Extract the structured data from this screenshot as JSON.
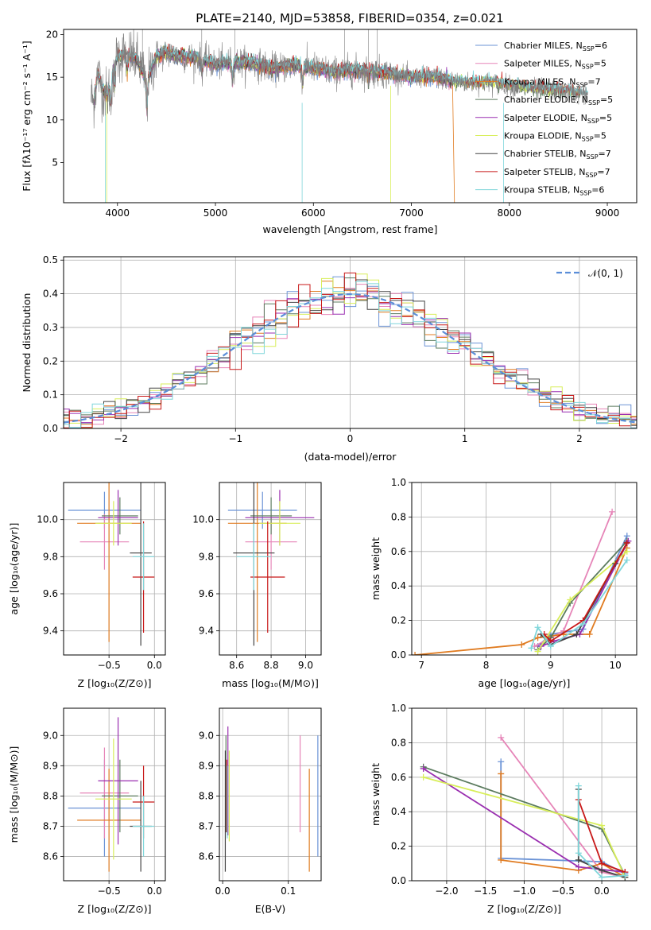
{
  "figure_title": "PLATE=2140, MJD=53858, FIBERID=0354, z=0.021",
  "colors": {
    "Chabrier MILES": "#6b93d6",
    "Salpeter MILES": "#e685b8",
    "Kroupa MILES": "#e07b20",
    "Chabrier ELODIE": "#5b7b5e",
    "Salpeter ELODIE": "#9a2fb0",
    "Kroupa ELODIE": "#d8ee5a",
    "Chabrier STELIB": "#444444",
    "Salpeter STELIB": "#c81818",
    "Kroupa STELIB": "#7fd6da",
    "gaussian": "#5b8ed8"
  },
  "chart_data": [
    {
      "id": "spectrum",
      "type": "line",
      "title": "PLATE=2140, MJD=53858, FIBERID=0354, z=0.021",
      "xlabel": "wavelength [Angstrom, rest frame]",
      "ylabel": "Flux [fλ10⁻¹⁷ erg cm⁻² s⁻¹ A⁻¹]",
      "xlim": [
        3450,
        9300
      ],
      "ylim": [
        0.3,
        20.6
      ],
      "xticks": [
        4000,
        5000,
        6000,
        7000,
        8000,
        9000
      ],
      "yticks": [
        5,
        10,
        15,
        20
      ],
      "legend_position": "upper-right",
      "data_series": {
        "name": "data",
        "color": "#808080"
      },
      "series": [
        {
          "name": "Chabrier MILES",
          "nssp": "6"
        },
        {
          "name": "Salpeter MILES",
          "nssp": "5"
        },
        {
          "name": "Kroupa MILES",
          "nssp": "7"
        },
        {
          "name": "Chabrier ELODIE",
          "nssp": "5"
        },
        {
          "name": "Salpeter ELODIE",
          "nssp": "5"
        },
        {
          "name": "Kroupa ELODIE",
          "nssp": "5"
        },
        {
          "name": "Chabrier STELIB",
          "nssp": "7"
        },
        {
          "name": "Salpeter STELIB",
          "nssp": "7"
        },
        {
          "name": "Kroupa STELIB",
          "nssp": "6"
        }
      ],
      "anchors": {
        "wave": [
          3750,
          3800,
          3850,
          3900,
          3950,
          4000,
          4100,
          4200,
          4300,
          4400,
          4500,
          4600,
          4800,
          5000,
          5200,
          5400,
          5600,
          5800,
          6000,
          6200,
          6400,
          6600,
          6800,
          7000,
          7200,
          7400,
          7600,
          7800,
          8000,
          8200,
          8400,
          8600,
          8800,
          9000,
          9200
        ],
        "flux": [
          11.5,
          15.5,
          13.5,
          12.8,
          15.8,
          17.5,
          17.8,
          17.0,
          14.5,
          17.5,
          17.8,
          17.5,
          17.3,
          16.5,
          16.8,
          16.6,
          16.0,
          16.4,
          16.1,
          15.6,
          15.8,
          15.7,
          15.4,
          15.0,
          15.1,
          14.6,
          14.3,
          14.4,
          14.0,
          13.7,
          13.5,
          13.3,
          13.0,
          12.8,
          12.6
        ]
      }
    },
    {
      "id": "residuals",
      "type": "histogram",
      "xlabel": "(data-model)/error",
      "ylabel": "Normed distribution",
      "xlim": [
        -2.5,
        2.5
      ],
      "ylim": [
        0,
        0.51
      ],
      "xticks": [
        -2,
        -1,
        0,
        1,
        2
      ],
      "yticks": [
        0.0,
        0.1,
        0.2,
        0.3,
        0.4,
        0.5
      ],
      "bin_width": 0.1,
      "gaussian_label": "𝒩(0, 1)",
      "legend_position": "upper-right"
    },
    {
      "id": "age_vs_Z",
      "type": "errorbar",
      "xlabel": "Z [log₁₀(Z/Z⊙)]",
      "ylabel": "age  [log₁₀(age/yr)]",
      "xlim": [
        -1.0,
        0.12
      ],
      "ylim": [
        9.27,
        10.2
      ],
      "xticks": [
        -0.5,
        0.0
      ],
      "yticks": [
        9.4,
        9.6,
        9.8,
        10.0
      ],
      "points": [
        {
          "x": -0.55,
          "xerr": 0.4,
          "y": 10.05,
          "yerr": 0.1
        },
        {
          "x": -0.55,
          "xerr": 0.27,
          "y": 9.88,
          "yerr": 0.15
        },
        {
          "x": -0.5,
          "xerr": 0.35,
          "y": 9.98,
          "yerr": 0.64
        },
        {
          "x": -0.38,
          "xerr": 0.2,
          "y": 10.02,
          "yerr": 0.1
        },
        {
          "x": -0.4,
          "xerr": 0.22,
          "y": 10.01,
          "yerr": 0.15
        },
        {
          "x": -0.45,
          "xerr": 0.2,
          "y": 9.98,
          "yerr": 0.12
        },
        {
          "x": -0.15,
          "xerr": 0.12,
          "y": 9.82,
          "yerr": 0.5
        },
        {
          "x": -0.12,
          "xerr": 0.12,
          "y": 9.69,
          "yerr": 0.3
        },
        {
          "x": -0.12,
          "xerr": 0.12,
          "y": 9.8,
          "yerr": 0.18
        }
      ]
    },
    {
      "id": "age_vs_mass",
      "type": "errorbar",
      "xlabel": "mass [log₁₀(M/M⊙)]",
      "ylabel": "",
      "xlim": [
        8.5,
        9.09
      ],
      "ylim": [
        9.27,
        10.2
      ],
      "xticks": [
        8.6,
        8.8,
        9.0
      ],
      "yticks": [
        9.4,
        9.6,
        9.8,
        10.0
      ],
      "points": [
        {
          "x": 8.75,
          "xerr": 0.2,
          "y": 10.05,
          "yerr": 0.1
        },
        {
          "x": 8.8,
          "xerr": 0.15,
          "y": 9.88,
          "yerr": 0.15
        },
        {
          "x": 8.72,
          "xerr": 0.17,
          "y": 9.98,
          "yerr": 0.64
        },
        {
          "x": 8.8,
          "xerr": 0.12,
          "y": 10.02,
          "yerr": 0.1
        },
        {
          "x": 8.85,
          "xerr": 0.2,
          "y": 10.01,
          "yerr": 0.15
        },
        {
          "x": 8.85,
          "xerr": 0.12,
          "y": 9.98,
          "yerr": 0.12
        },
        {
          "x": 8.7,
          "xerr": 0.12,
          "y": 9.82,
          "yerr": 0.5
        },
        {
          "x": 8.78,
          "xerr": 0.1,
          "y": 9.69,
          "yerr": 0.3
        },
        {
          "x": 8.7,
          "xerr": 0.1,
          "y": 9.8,
          "yerr": 0.18
        }
      ]
    },
    {
      "id": "mass_weight_vs_age",
      "type": "line",
      "xlabel": "age  [log₁₀(age/yr)]",
      "ylabel": "mass weight",
      "xlim": [
        6.85,
        10.33
      ],
      "ylim": [
        0,
        1.0
      ],
      "xticks": [
        7,
        8,
        9,
        10
      ],
      "yticks": [
        0.0,
        0.2,
        0.4,
        0.6,
        0.8,
        1.0
      ],
      "series": [
        {
          "name": "Chabrier MILES",
          "x": [
            8.8,
            9.0,
            9.5,
            10.18
          ],
          "y": [
            0.05,
            0.12,
            0.15,
            0.69
          ]
        },
        {
          "name": "Salpeter MILES",
          "x": [
            8.75,
            9.2,
            9.95
          ],
          "y": [
            0.05,
            0.14,
            0.83
          ]
        },
        {
          "name": "Kroupa MILES",
          "x": [
            6.9,
            8.55,
            8.8,
            9.2,
            9.6,
            10.18
          ],
          "y": [
            0.0,
            0.06,
            0.1,
            0.12,
            0.12,
            0.62
          ]
        },
        {
          "name": "Chabrier ELODIE",
          "x": [
            8.8,
            9.0,
            9.3,
            10.18
          ],
          "y": [
            0.03,
            0.1,
            0.3,
            0.66
          ]
        },
        {
          "name": "Salpeter ELODIE",
          "x": [
            8.85,
            9.05,
            9.45,
            10.2
          ],
          "y": [
            0.05,
            0.08,
            0.12,
            0.66
          ]
        },
        {
          "name": "Kroupa ELODIE",
          "x": [
            8.8,
            9.3,
            10.18
          ],
          "y": [
            0.02,
            0.32,
            0.6
          ]
        },
        {
          "name": "Chabrier STELIB",
          "x": [
            8.85,
            9.0,
            9.4,
            10.0,
            10.18
          ],
          "y": [
            0.12,
            0.06,
            0.12,
            0.53,
            0.65
          ]
        },
        {
          "name": "Salpeter STELIB",
          "x": [
            8.9,
            9.0,
            9.5,
            10.18
          ],
          "y": [
            0.12,
            0.08,
            0.2,
            0.65
          ]
        },
        {
          "name": "Kroupa STELIB",
          "x": [
            8.7,
            8.8,
            9.0,
            9.5,
            10.18
          ],
          "y": [
            0.04,
            0.16,
            0.05,
            0.18,
            0.55
          ]
        }
      ]
    },
    {
      "id": "mass_vs_Z",
      "type": "errorbar",
      "xlabel": "Z [log₁₀(Z/Z⊙)]",
      "ylabel": "mass [log₁₀(M/M⊙)]",
      "xlim": [
        -1.0,
        0.12
      ],
      "ylim": [
        8.52,
        9.09
      ],
      "xticks": [
        -0.5,
        0.0
      ],
      "yticks": [
        8.6,
        8.7,
        8.8,
        8.9,
        9.0
      ],
      "points": [
        {
          "x": -0.55,
          "xerr": 0.4,
          "y": 8.76,
          "yerr": 0.16
        },
        {
          "x": -0.55,
          "xerr": 0.27,
          "y": 8.81,
          "yerr": 0.15
        },
        {
          "x": -0.5,
          "xerr": 0.35,
          "y": 8.72,
          "yerr": 0.17
        },
        {
          "x": -0.38,
          "xerr": 0.2,
          "y": 8.8,
          "yerr": 0.12
        },
        {
          "x": -0.4,
          "xerr": 0.22,
          "y": 8.85,
          "yerr": 0.21
        },
        {
          "x": -0.45,
          "xerr": 0.2,
          "y": 8.79,
          "yerr": 0.2
        },
        {
          "x": -0.15,
          "xerr": 0.12,
          "y": 8.7,
          "yerr": 0.15
        },
        {
          "x": -0.12,
          "xerr": 0.12,
          "y": 8.78,
          "yerr": 0.12
        },
        {
          "x": -0.12,
          "xerr": 0.12,
          "y": 8.7,
          "yerr": 0.1
        }
      ]
    },
    {
      "id": "mass_vs_ebv",
      "type": "errorbar",
      "xlabel": "E(B-V)",
      "ylabel": "",
      "xlim": [
        -0.005,
        0.15
      ],
      "ylim": [
        8.52,
        9.09
      ],
      "xticks": [
        0.0,
        0.1
      ],
      "yticks": [
        8.6,
        8.7,
        8.8,
        8.9,
        9.0
      ],
      "points": [
        {
          "x": 0.145,
          "xerr": 0,
          "y": 8.8,
          "yerr": 0.2
        },
        {
          "x": 0.118,
          "xerr": 0,
          "y": 8.84,
          "yerr": 0.16
        },
        {
          "x": 0.132,
          "xerr": 0,
          "y": 8.72,
          "yerr": 0.17
        },
        {
          "x": 0.005,
          "xerr": 0,
          "y": 8.84,
          "yerr": 0.16
        },
        {
          "x": 0.008,
          "xerr": 0,
          "y": 8.85,
          "yerr": 0.18
        },
        {
          "x": 0.01,
          "xerr": 0,
          "y": 8.8,
          "yerr": 0.15
        },
        {
          "x": 0.004,
          "xerr": 0,
          "y": 8.75,
          "yerr": 0.2
        },
        {
          "x": 0.006,
          "xerr": 0,
          "y": 8.8,
          "yerr": 0.12
        },
        {
          "x": 0.007,
          "xerr": 0,
          "y": 8.78,
          "yerr": 0.12
        }
      ]
    },
    {
      "id": "mass_weight_vs_Z",
      "type": "line",
      "xlabel": "Z [log₁₀(Z/Z⊙)]",
      "ylabel": "mass weight",
      "xlim": [
        -2.45,
        0.45
      ],
      "ylim": [
        0,
        1.0
      ],
      "xticks": [
        -2.0,
        -1.5,
        -1.0,
        -0.5,
        0.0
      ],
      "yticks": [
        0.0,
        0.2,
        0.4,
        0.6,
        0.8,
        1.0
      ],
      "series": [
        {
          "name": "Chabrier MILES",
          "x": [
            -1.3,
            -1.3,
            0.0,
            0.3
          ],
          "y": [
            0.69,
            0.13,
            0.11,
            0.04
          ]
        },
        {
          "name": "Salpeter MILES",
          "x": [
            -1.3,
            0.0,
            0.3
          ],
          "y": [
            0.83,
            0.05,
            0.02
          ]
        },
        {
          "name": "Kroupa MILES",
          "x": [
            -1.3,
            -1.3,
            -0.3,
            0.0,
            0.3
          ],
          "y": [
            0.62,
            0.12,
            0.06,
            0.1,
            0.02
          ]
        },
        {
          "name": "Chabrier ELODIE",
          "x": [
            -2.3,
            0.0,
            0.3
          ],
          "y": [
            0.66,
            0.3,
            0.03
          ]
        },
        {
          "name": "Salpeter ELODIE",
          "x": [
            -2.3,
            -0.3,
            0.3
          ],
          "y": [
            0.65,
            0.08,
            0.05
          ]
        },
        {
          "name": "Kroupa ELODIE",
          "x": [
            -2.3,
            0.0,
            0.3
          ],
          "y": [
            0.6,
            0.32,
            0.02
          ]
        },
        {
          "name": "Chabrier STELIB",
          "x": [
            -0.3,
            -0.3,
            0.0,
            0.3
          ],
          "y": [
            0.53,
            0.12,
            0.06,
            0.02
          ]
        },
        {
          "name": "Salpeter STELIB",
          "x": [
            -0.3,
            0.0,
            0.3
          ],
          "y": [
            0.47,
            0.1,
            0.05
          ]
        },
        {
          "name": "Kroupa STELIB",
          "x": [
            -0.3,
            -0.3,
            0.0,
            0.3
          ],
          "y": [
            0.55,
            0.16,
            0.02,
            0.03
          ]
        }
      ]
    }
  ]
}
